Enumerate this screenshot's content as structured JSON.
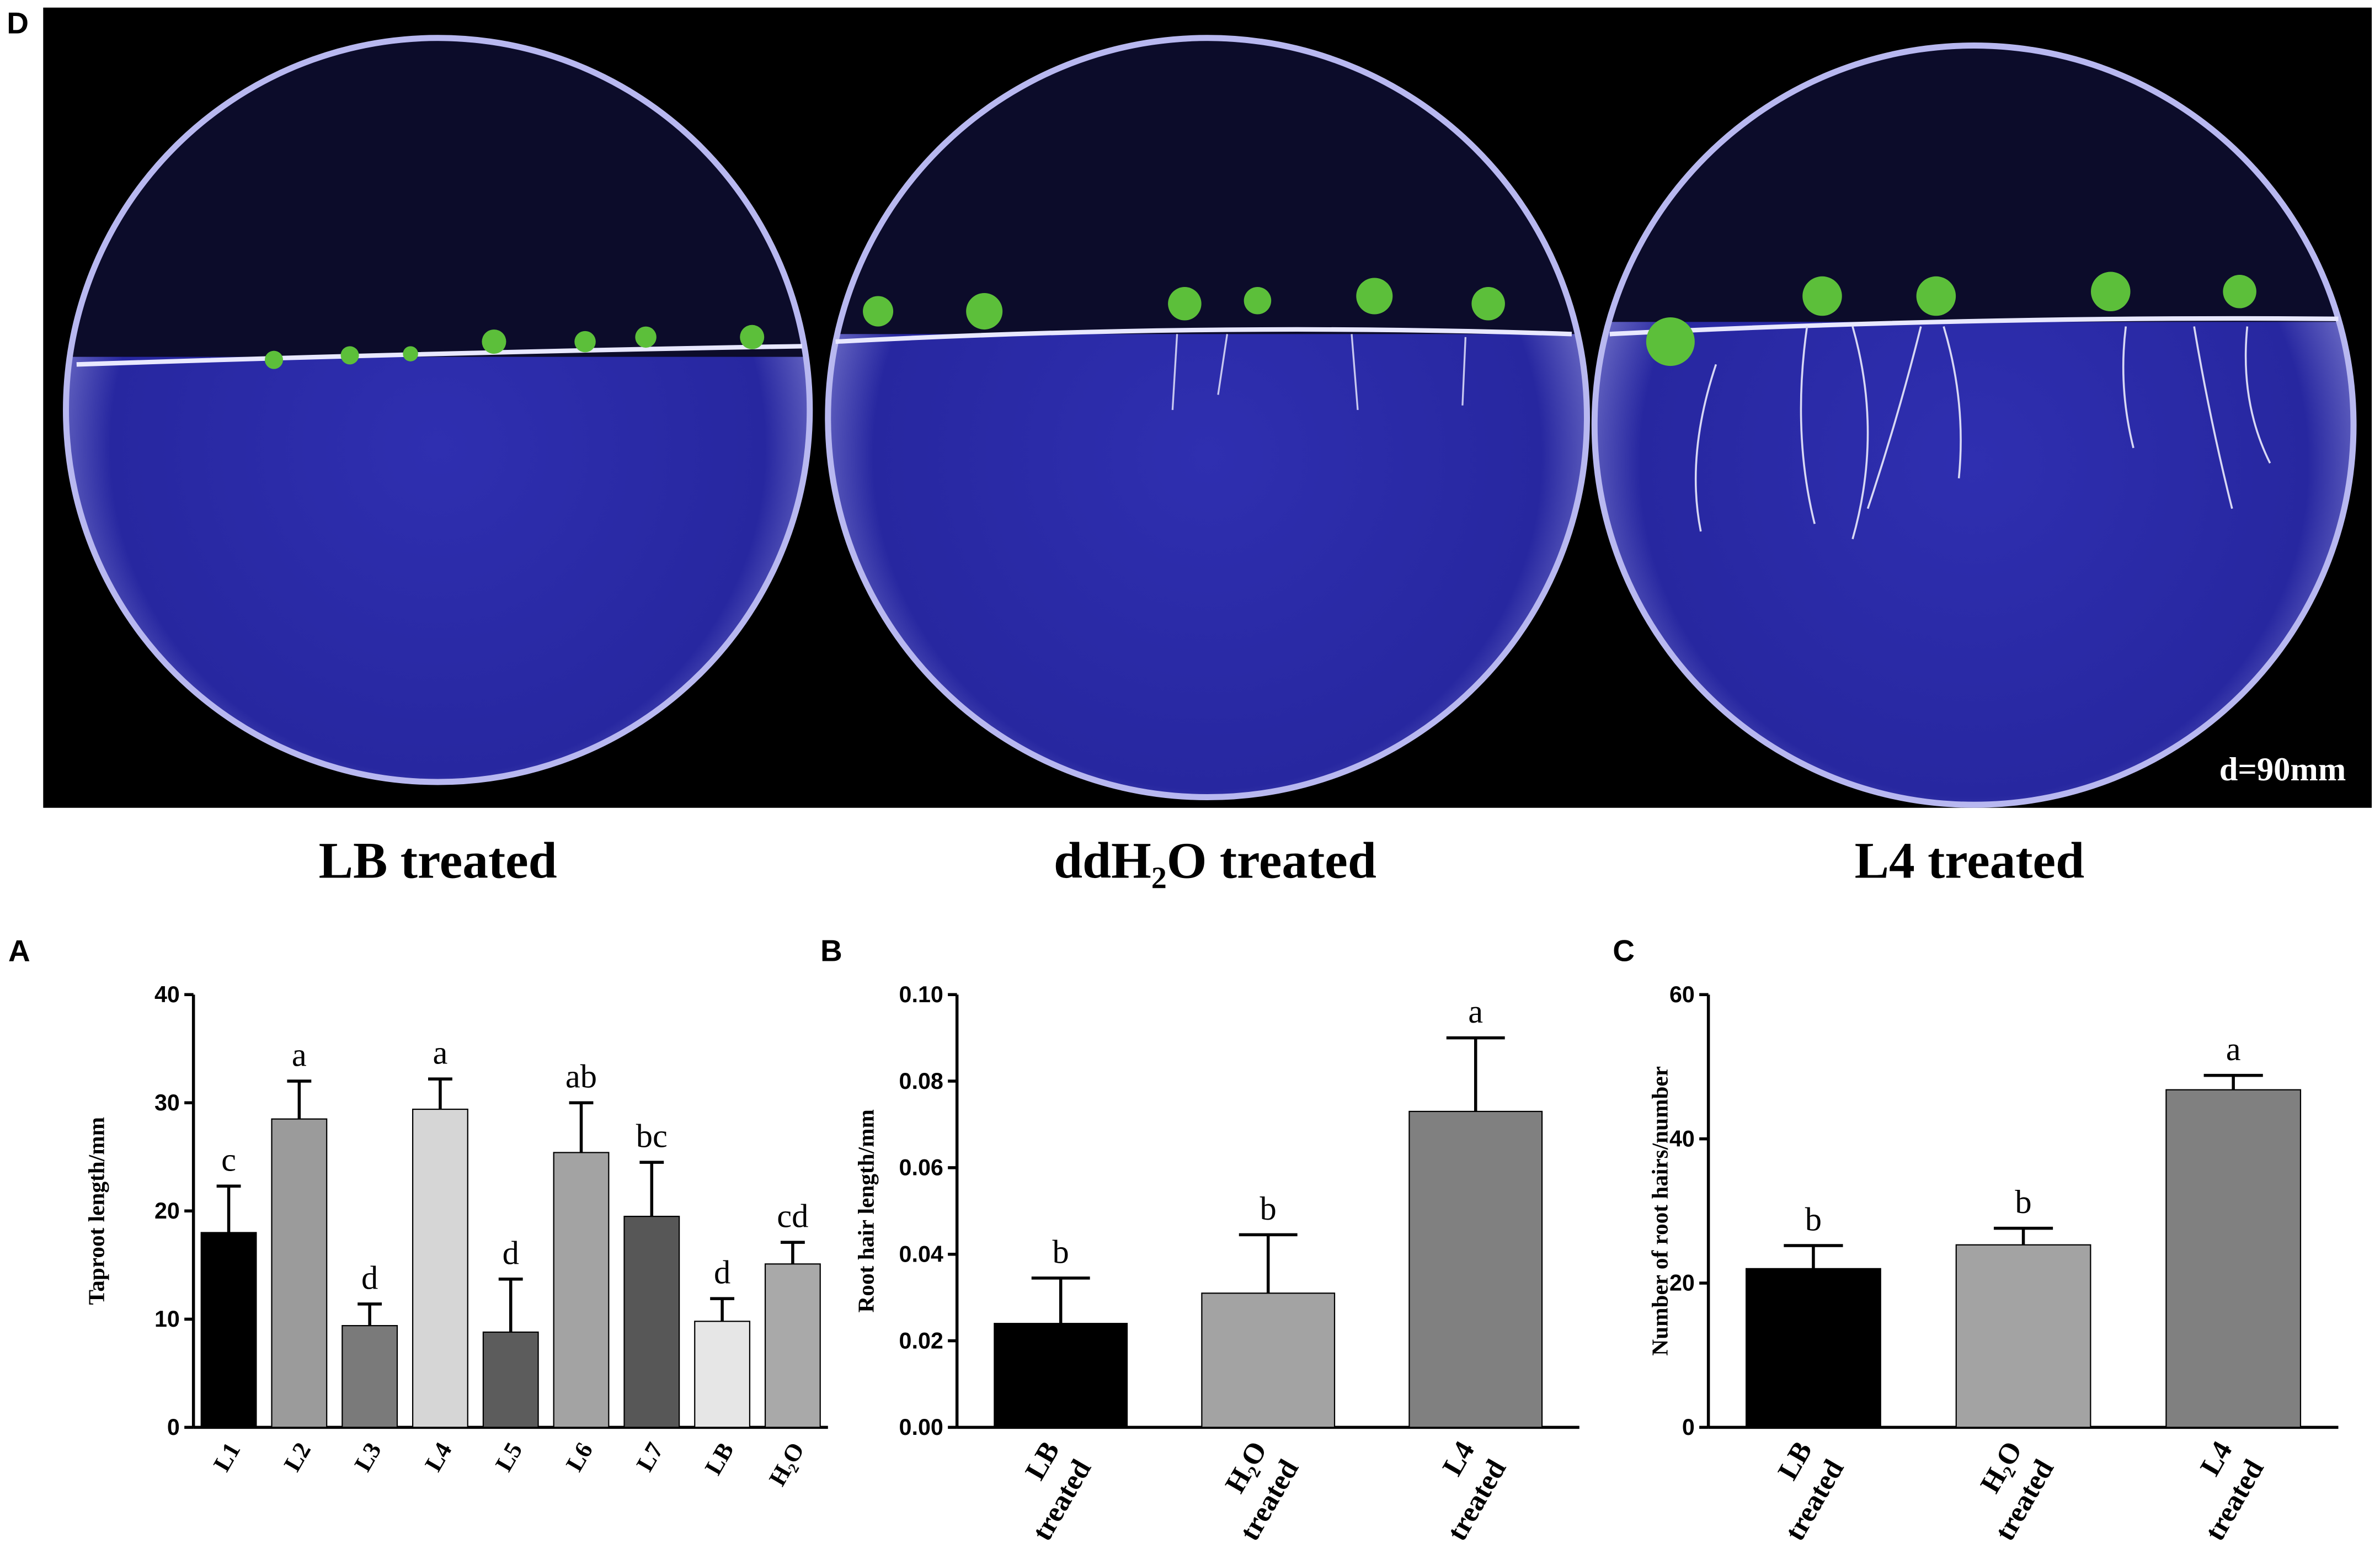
{
  "photo": {
    "panel_label": "D",
    "scale_label": "d=90mm",
    "captions": [
      "LB treated",
      "ddH₂O treated",
      "L4 treated"
    ]
  },
  "chart_data": [
    {
      "type": "bar",
      "panel_label": "A",
      "ylabel": "Taproot length/mm",
      "categories": [
        "L1",
        "L2",
        "L3",
        "L4",
        "L5",
        "L6",
        "L7",
        "LB",
        "H₂O"
      ],
      "values": [
        18.0,
        28.5,
        9.4,
        29.4,
        8.8,
        25.4,
        19.5,
        9.8,
        15.1
      ],
      "errors": [
        4.3,
        3.5,
        2.0,
        2.8,
        4.9,
        4.6,
        5.0,
        2.1,
        2.0
      ],
      "annotations": [
        "c",
        "a",
        "d",
        "a",
        "d",
        "ab",
        "bc",
        "d",
        "cd"
      ],
      "colors": [
        "#000000",
        "#9b9b9b",
        "#7a7a7a",
        "#d6d6d6",
        "#5c5c5c",
        "#a3a3a3",
        "#575757",
        "#e6e6e6",
        "#a9a9a9"
      ],
      "ylim": [
        0,
        40
      ],
      "yticks": [
        0,
        10,
        20,
        30,
        40
      ]
    },
    {
      "type": "bar",
      "panel_label": "B",
      "ylabel": "Root hair length/mm",
      "categories": [
        "LB treated",
        "H₂O treated",
        "L4 treated"
      ],
      "values": [
        0.024,
        0.031,
        0.073
      ],
      "errors": [
        0.0105,
        0.0135,
        0.017
      ],
      "annotations": [
        "b",
        "b",
        "a"
      ],
      "colors": [
        "#000000",
        "#a3a3a3",
        "#808080"
      ],
      "ylim": [
        0,
        0.1
      ],
      "yticks": [
        {
          "value": 0,
          "label": "0.00"
        },
        {
          "value": 0.02,
          "label": "0.02"
        },
        {
          "value": 0.04,
          "label": "0.04"
        },
        {
          "value": 0.06,
          "label": "0.06"
        },
        {
          "value": 0.08,
          "label": "0.08"
        },
        {
          "value": 0.1,
          "label": "0.10"
        }
      ]
    },
    {
      "type": "bar",
      "panel_label": "C",
      "ylabel": "Number of root hairs/number",
      "categories": [
        "LB treated",
        "H₂O treated",
        "L4 treated"
      ],
      "values": [
        22.0,
        25.3,
        46.8
      ],
      "errors": [
        3.2,
        2.3,
        2.0
      ],
      "annotations": [
        "b",
        "b",
        "a"
      ],
      "colors": [
        "#000000",
        "#a3a3a3",
        "#808080"
      ],
      "ylim": [
        0,
        60
      ],
      "yticks": [
        0,
        20,
        40,
        60
      ]
    }
  ]
}
